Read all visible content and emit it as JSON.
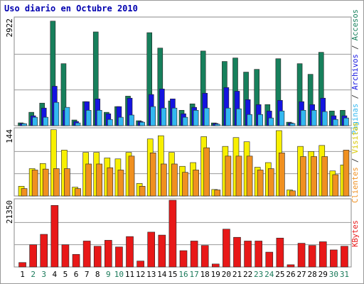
{
  "chart_data": [
    {
      "type": "bar",
      "title": "Uso diario en Octubre 2010",
      "ylim": [
        0,
        2922
      ],
      "yticks": [
        2922
      ],
      "legend_separator": " / ",
      "series": [
        {
          "name": "Páginas",
          "color": "#33b8f0",
          "values": [
            55,
            230,
            230,
            635,
            500,
            75,
            420,
            420,
            170,
            230,
            290,
            95,
            520,
            480,
            480,
            230,
            420,
            480,
            40,
            480,
            460,
            305,
            305,
            210,
            400,
            60,
            420,
            420,
            385,
            170,
            210
          ]
        },
        {
          "name": "Archivos",
          "color": "#1414e0",
          "values": [
            60,
            270,
            480,
            1075,
            420,
            115,
            655,
            730,
            325,
            520,
            750,
            115,
            850,
            1000,
            730,
            325,
            500,
            885,
            60,
            1040,
            940,
            710,
            575,
            400,
            690,
            75,
            655,
            575,
            750,
            270,
            270
          ]
        },
        {
          "name": "Accesos",
          "color": "#17805c",
          "values": [
            77,
            365,
            615,
            2850,
            1690,
            155,
            655,
            2555,
            365,
            520,
            805,
            135,
            2535,
            2115,
            675,
            420,
            595,
            2035,
            75,
            1750,
            1845,
            1460,
            1535,
            575,
            1825,
            95,
            1690,
            1400,
            2000,
            400,
            420
          ]
        }
      ]
    },
    {
      "type": "bar",
      "ylim": [
        0,
        144
      ],
      "yticks": [
        144
      ],
      "series": [
        {
          "name": "Clientes",
          "color": "#f09020",
          "values": [
            16,
            56,
            58,
            59,
            59,
            16,
            69,
            69,
            61,
            56,
            86,
            21,
            93,
            69,
            69,
            51,
            56,
            104,
            13,
            86,
            86,
            86,
            56,
            59,
            93,
            11,
            85,
            85,
            85,
            46,
            99
          ]
        },
        {
          "name": "Visitas",
          "color": "#f8f000",
          "values": [
            21,
            59,
            70,
            143,
            99,
            19,
            94,
            94,
            82,
            80,
            94,
            27,
            123,
            130,
            94,
            64,
            72,
            128,
            14,
            107,
            126,
            117,
            62,
            72,
            141,
            13,
            107,
            96,
            109,
            54,
            67
          ]
        }
      ]
    },
    {
      "type": "bar",
      "ylim": [
        0,
        21350
      ],
      "yticks": [
        21350
      ],
      "categories": [
        "1",
        "2",
        "3",
        "4",
        "5",
        "6",
        "7",
        "8",
        "9",
        "10",
        "11",
        "12",
        "13",
        "14",
        "15",
        "16",
        "17",
        "18",
        "19",
        "20",
        "21",
        "22",
        "23",
        "24",
        "25",
        "26",
        "27",
        "28",
        "29",
        "30",
        "31"
      ],
      "category_colors": [
        "#000",
        "#1a7a5a",
        "#1a7a5a",
        "#000",
        "#000",
        "#000",
        "#000",
        "#000",
        "#1a7a5a",
        "#1a7a5a",
        "#000",
        "#000",
        "#000",
        "#000",
        "#000",
        "#1a7a5a",
        "#1a7a5a",
        "#000",
        "#000",
        "#000",
        "#000",
        "#000",
        "#1a7a5a",
        "#1a7a5a",
        "#000",
        "#000",
        "#000",
        "#000",
        "#000",
        "#1a7a5a",
        "#1a7a5a"
      ],
      "series": [
        {
          "name": "KBytes",
          "color": "#e81818",
          "values": [
            1420,
            7100,
            10440,
            19690,
            7100,
            4030,
            8300,
            6640,
            8540,
            6400,
            9730,
            1900,
            11150,
            10200,
            21350,
            5220,
            8300,
            6880,
            950,
            12100,
            9490,
            8300,
            8300,
            4750,
            9250,
            710,
            7590,
            6880,
            8070,
            5460,
            6640
          ]
        }
      ]
    }
  ]
}
